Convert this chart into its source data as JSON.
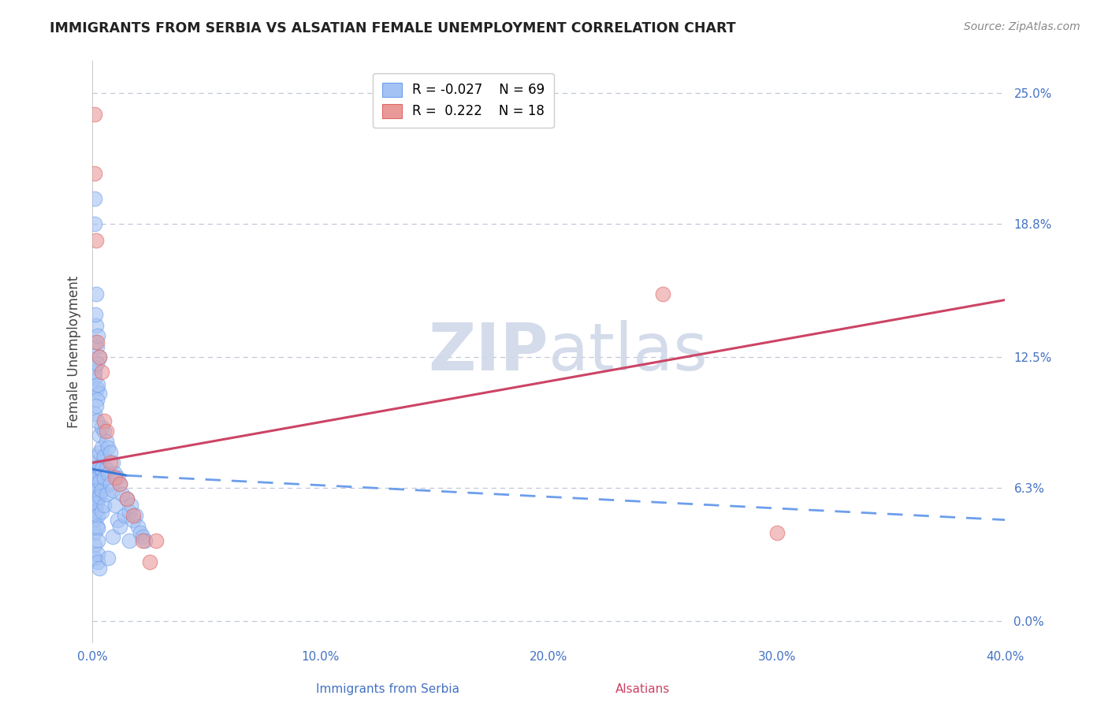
{
  "title": "IMMIGRANTS FROM SERBIA VS ALSATIAN FEMALE UNEMPLOYMENT CORRELATION CHART",
  "source": "Source: ZipAtlas.com",
  "xlabel_blue": "Immigrants from Serbia",
  "xlabel_pink": "Alsatians",
  "ylabel": "Female Unemployment",
  "xlim": [
    0.0,
    0.4
  ],
  "ylim": [
    -0.01,
    0.265
  ],
  "ytick_vals": [
    0.0,
    0.063,
    0.125,
    0.188,
    0.25
  ],
  "ytick_labels": [
    "0.0%",
    "6.3%",
    "12.5%",
    "18.8%",
    "25.0%"
  ],
  "xtick_vals": [
    0.0,
    0.1,
    0.2,
    0.3,
    0.4
  ],
  "xtick_labels": [
    "0.0%",
    "10.0%",
    "20.0%",
    "30.0%",
    "40.0%"
  ],
  "legend_blue_r": "-0.027",
  "legend_blue_n": "69",
  "legend_pink_r": "0.222",
  "legend_pink_n": "18",
  "blue_color": "#a4c2f4",
  "blue_edge_color": "#6d9eeb",
  "pink_color": "#ea9999",
  "pink_edge_color": "#e06666",
  "trendline_blue_solid_color": "#3c78d8",
  "trendline_blue_dash_color": "#6d9eeb",
  "trendline_pink_color": "#cc4466",
  "watermark_color": "#d0d8e8",
  "grid_color": "#c0c8d8",
  "blue_scatter_x": [
    0.0008,
    0.0009,
    0.001,
    0.001,
    0.001,
    0.001,
    0.001,
    0.001,
    0.0012,
    0.0013,
    0.0015,
    0.0015,
    0.0016,
    0.0017,
    0.0018,
    0.0019,
    0.002,
    0.002,
    0.002,
    0.002,
    0.002,
    0.0022,
    0.0023,
    0.0024,
    0.0025,
    0.0025,
    0.003,
    0.003,
    0.003,
    0.003,
    0.003,
    0.003,
    0.004,
    0.004,
    0.004,
    0.004,
    0.004,
    0.005,
    0.005,
    0.005,
    0.005,
    0.006,
    0.006,
    0.006,
    0.007,
    0.007,
    0.007,
    0.008,
    0.008,
    0.009,
    0.009,
    0.009,
    0.01,
    0.01,
    0.011,
    0.011,
    0.012,
    0.012,
    0.013,
    0.014,
    0.015,
    0.016,
    0.016,
    0.017,
    0.018,
    0.019,
    0.02,
    0.021,
    0.022,
    0.023
  ],
  "blue_scatter_y": [
    0.072,
    0.065,
    0.058,
    0.055,
    0.048,
    0.042,
    0.036,
    0.03,
    0.068,
    0.062,
    0.075,
    0.07,
    0.065,
    0.058,
    0.052,
    0.045,
    0.078,
    0.073,
    0.068,
    0.062,
    0.056,
    0.05,
    0.044,
    0.038,
    0.032,
    0.028,
    0.088,
    0.08,
    0.073,
    0.066,
    0.059,
    0.025,
    0.092,
    0.082,
    0.072,
    0.062,
    0.052,
    0.09,
    0.078,
    0.068,
    0.055,
    0.085,
    0.072,
    0.06,
    0.082,
    0.07,
    0.03,
    0.08,
    0.065,
    0.075,
    0.062,
    0.04,
    0.07,
    0.055,
    0.068,
    0.048,
    0.065,
    0.045,
    0.06,
    0.05,
    0.058,
    0.052,
    0.038,
    0.055,
    0.048,
    0.05,
    0.045,
    0.042,
    0.04,
    0.038
  ],
  "blue_high_x": [
    0.0008,
    0.001,
    0.0015,
    0.002,
    0.003,
    0.001,
    0.001,
    0.002,
    0.003,
    0.002,
    0.001,
    0.001,
    0.002,
    0.0025,
    0.001,
    0.0015,
    0.002,
    0.0012,
    0.0018,
    0.0022
  ],
  "blue_high_y": [
    0.2,
    0.188,
    0.14,
    0.13,
    0.125,
    0.12,
    0.115,
    0.11,
    0.108,
    0.105,
    0.132,
    0.118,
    0.122,
    0.135,
    0.098,
    0.155,
    0.095,
    0.145,
    0.102,
    0.112
  ],
  "pink_scatter_x": [
    0.0008,
    0.001,
    0.0015,
    0.002,
    0.003,
    0.004,
    0.005,
    0.006,
    0.008,
    0.01,
    0.012,
    0.015,
    0.018,
    0.022,
    0.025,
    0.028,
    0.25,
    0.3
  ],
  "pink_scatter_y": [
    0.24,
    0.212,
    0.18,
    0.132,
    0.125,
    0.118,
    0.095,
    0.09,
    0.075,
    0.068,
    0.065,
    0.058,
    0.05,
    0.038,
    0.028,
    0.038,
    0.155,
    0.042
  ],
  "blue_trend_start_x": 0.0,
  "blue_trend_start_y": 0.072,
  "blue_trend_solid_end_x": 0.015,
  "blue_trend_solid_end_y": 0.069,
  "blue_trend_dash_end_x": 0.4,
  "blue_trend_dash_end_y": 0.048,
  "pink_trend_start_x": 0.0,
  "pink_trend_start_y": 0.075,
  "pink_trend_end_x": 0.4,
  "pink_trend_end_y": 0.152
}
